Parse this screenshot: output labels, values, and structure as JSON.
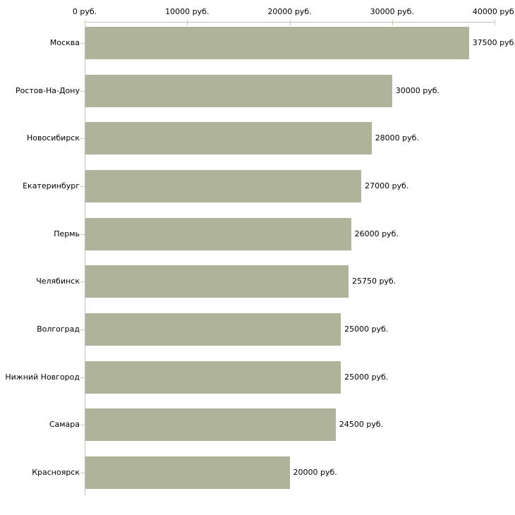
{
  "chart_data": {
    "type": "bar",
    "orientation": "horizontal",
    "title": "",
    "unit": "руб.",
    "categories": [
      "Москва",
      "Ростов-На-Дону",
      "Новосибирск",
      "Екатеринбург",
      "Пермь",
      "Челябинск",
      "Волгоград",
      "Нижний Новгород",
      "Самара",
      "Красноярск"
    ],
    "values": [
      37500,
      30000,
      28000,
      27000,
      26000,
      25750,
      25000,
      25000,
      24500,
      20000
    ],
    "value_labels": [
      "37500 руб.",
      "30000 руб.",
      "28000 руб.",
      "27000 руб.",
      "26000 руб.",
      "25750 руб.",
      "25000 руб.",
      "25000 руб.",
      "24500 руб.",
      "20000 руб."
    ],
    "x_axis": {
      "position": "top",
      "tick_labels": [
        "0 руб.",
        "10000 руб.",
        "20000 руб.",
        "30000 руб.",
        "40000 руб."
      ],
      "tick_values": [
        0,
        10000,
        20000,
        30000,
        40000
      ]
    },
    "xlim": [
      0,
      40000
    ],
    "grid": false,
    "legend": false,
    "colors": {
      "bar": "#aeb39a",
      "axis_line": "#c0c0c0",
      "tick": "#c9cba3",
      "text": "#000000",
      "background": "#ffffff"
    }
  }
}
